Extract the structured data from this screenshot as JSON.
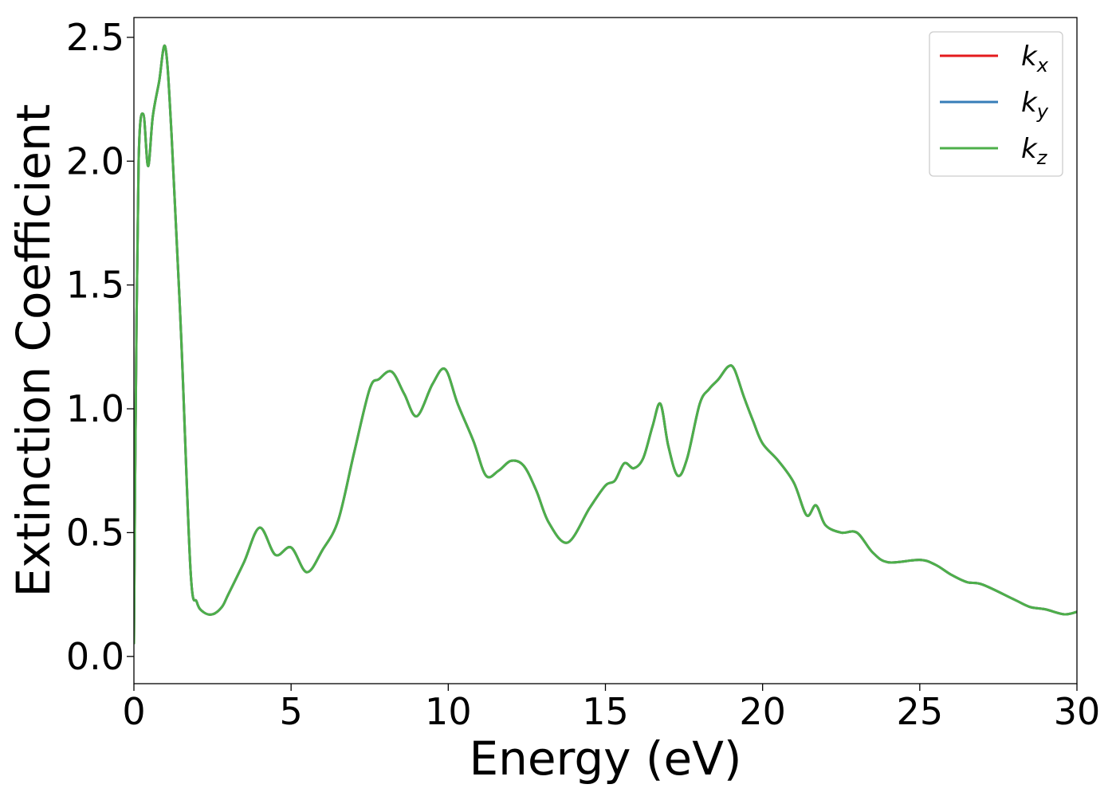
{
  "chart_data": {
    "type": "line",
    "title": "",
    "xlabel": "Energy (eV)",
    "ylabel": "Extinction Coefficient",
    "xlim": [
      0,
      30
    ],
    "ylim": [
      -0.11,
      2.58
    ],
    "xticks": [
      0,
      5,
      10,
      15,
      20,
      25,
      30
    ],
    "xtick_labels": [
      "0",
      "5",
      "10",
      "15",
      "20",
      "25",
      "30"
    ],
    "yticks": [
      0.0,
      0.5,
      1.0,
      1.5,
      2.0,
      2.5
    ],
    "ytick_labels": [
      "0.0",
      "0.5",
      "1.0",
      "1.5",
      "2.0",
      "2.5"
    ],
    "grid": false,
    "legend_position": "top-right",
    "series": [
      {
        "name": "k",
        "sub": "x",
        "color": "#e41a1c"
      },
      {
        "name": "k",
        "sub": "y",
        "color": "#377eb8"
      },
      {
        "name": "k",
        "sub": "z",
        "color": "#4daf4a"
      }
    ],
    "x": [
      0,
      0.05,
      0.15,
      0.3,
      0.45,
      0.6,
      0.8,
      1.0,
      1.2,
      1.5,
      1.8,
      2.0,
      2.2,
      2.5,
      2.8,
      3.0,
      3.5,
      4.0,
      4.5,
      5.0,
      5.5,
      6.0,
      6.5,
      7.0,
      7.5,
      7.8,
      8.2,
      8.6,
      9.0,
      9.5,
      9.9,
      10.3,
      10.8,
      11.2,
      11.6,
      12.0,
      12.4,
      12.8,
      13.2,
      13.8,
      14.5,
      15.0,
      15.3,
      15.6,
      15.9,
      16.2,
      16.5,
      16.75,
      17.0,
      17.3,
      17.6,
      18.0,
      18.3,
      18.6,
      18.9,
      19.1,
      19.4,
      19.7,
      20.0,
      20.5,
      21.0,
      21.4,
      21.7,
      22.0,
      22.5,
      23.0,
      23.5,
      24.0,
      25.0,
      25.5,
      26.0,
      26.5,
      27.0,
      28.0,
      28.5,
      29.0,
      29.6,
      30.0
    ],
    "y": [
      0.05,
      0.9,
      2.0,
      2.19,
      1.98,
      2.18,
      2.32,
      2.46,
      2.1,
      1.3,
      0.35,
      0.22,
      0.18,
      0.17,
      0.2,
      0.25,
      0.38,
      0.52,
      0.41,
      0.44,
      0.34,
      0.43,
      0.55,
      0.82,
      1.08,
      1.12,
      1.15,
      1.06,
      0.97,
      1.1,
      1.16,
      1.02,
      0.87,
      0.73,
      0.75,
      0.79,
      0.77,
      0.67,
      0.54,
      0.46,
      0.6,
      0.69,
      0.71,
      0.78,
      0.76,
      0.8,
      0.93,
      1.02,
      0.85,
      0.73,
      0.8,
      1.02,
      1.08,
      1.12,
      1.17,
      1.16,
      1.05,
      0.95,
      0.86,
      0.79,
      0.7,
      0.57,
      0.61,
      0.53,
      0.5,
      0.5,
      0.42,
      0.38,
      0.39,
      0.37,
      0.33,
      0.3,
      0.29,
      0.23,
      0.2,
      0.19,
      0.17,
      0.18
    ]
  }
}
